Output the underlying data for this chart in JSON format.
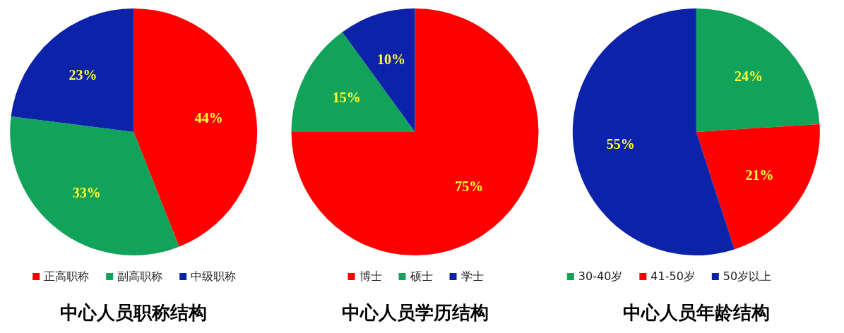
{
  "chart_data": [
    {
      "type": "pie",
      "title": "中心人员职称结构",
      "categories": [
        "正高职称",
        "副高职称",
        "中级职称"
      ],
      "values": [
        44,
        33,
        23
      ],
      "value_labels": [
        "44%",
        "33%",
        "23%"
      ],
      "colors": [
        "#ff0000",
        "#12a35a",
        "#0c22a8"
      ],
      "legend": "bottom"
    },
    {
      "type": "pie",
      "title": "中心人员学历结构",
      "categories": [
        "博士",
        "硕士",
        "学士"
      ],
      "values": [
        75,
        15,
        10
      ],
      "value_labels": [
        "75%",
        "15%",
        "10%"
      ],
      "colors": [
        "#ff0000",
        "#12a35a",
        "#0c22a8"
      ],
      "legend": "bottom"
    },
    {
      "type": "pie",
      "title": "中心人员年龄结构",
      "categories": [
        "30-40岁",
        "41-50岁",
        "50岁以上"
      ],
      "values": [
        24,
        21,
        55
      ],
      "value_labels": [
        "24%",
        "21%",
        "55%"
      ],
      "colors": [
        "#12a35a",
        "#ff0000",
        "#0c22a8"
      ],
      "legend": "bottom"
    }
  ]
}
